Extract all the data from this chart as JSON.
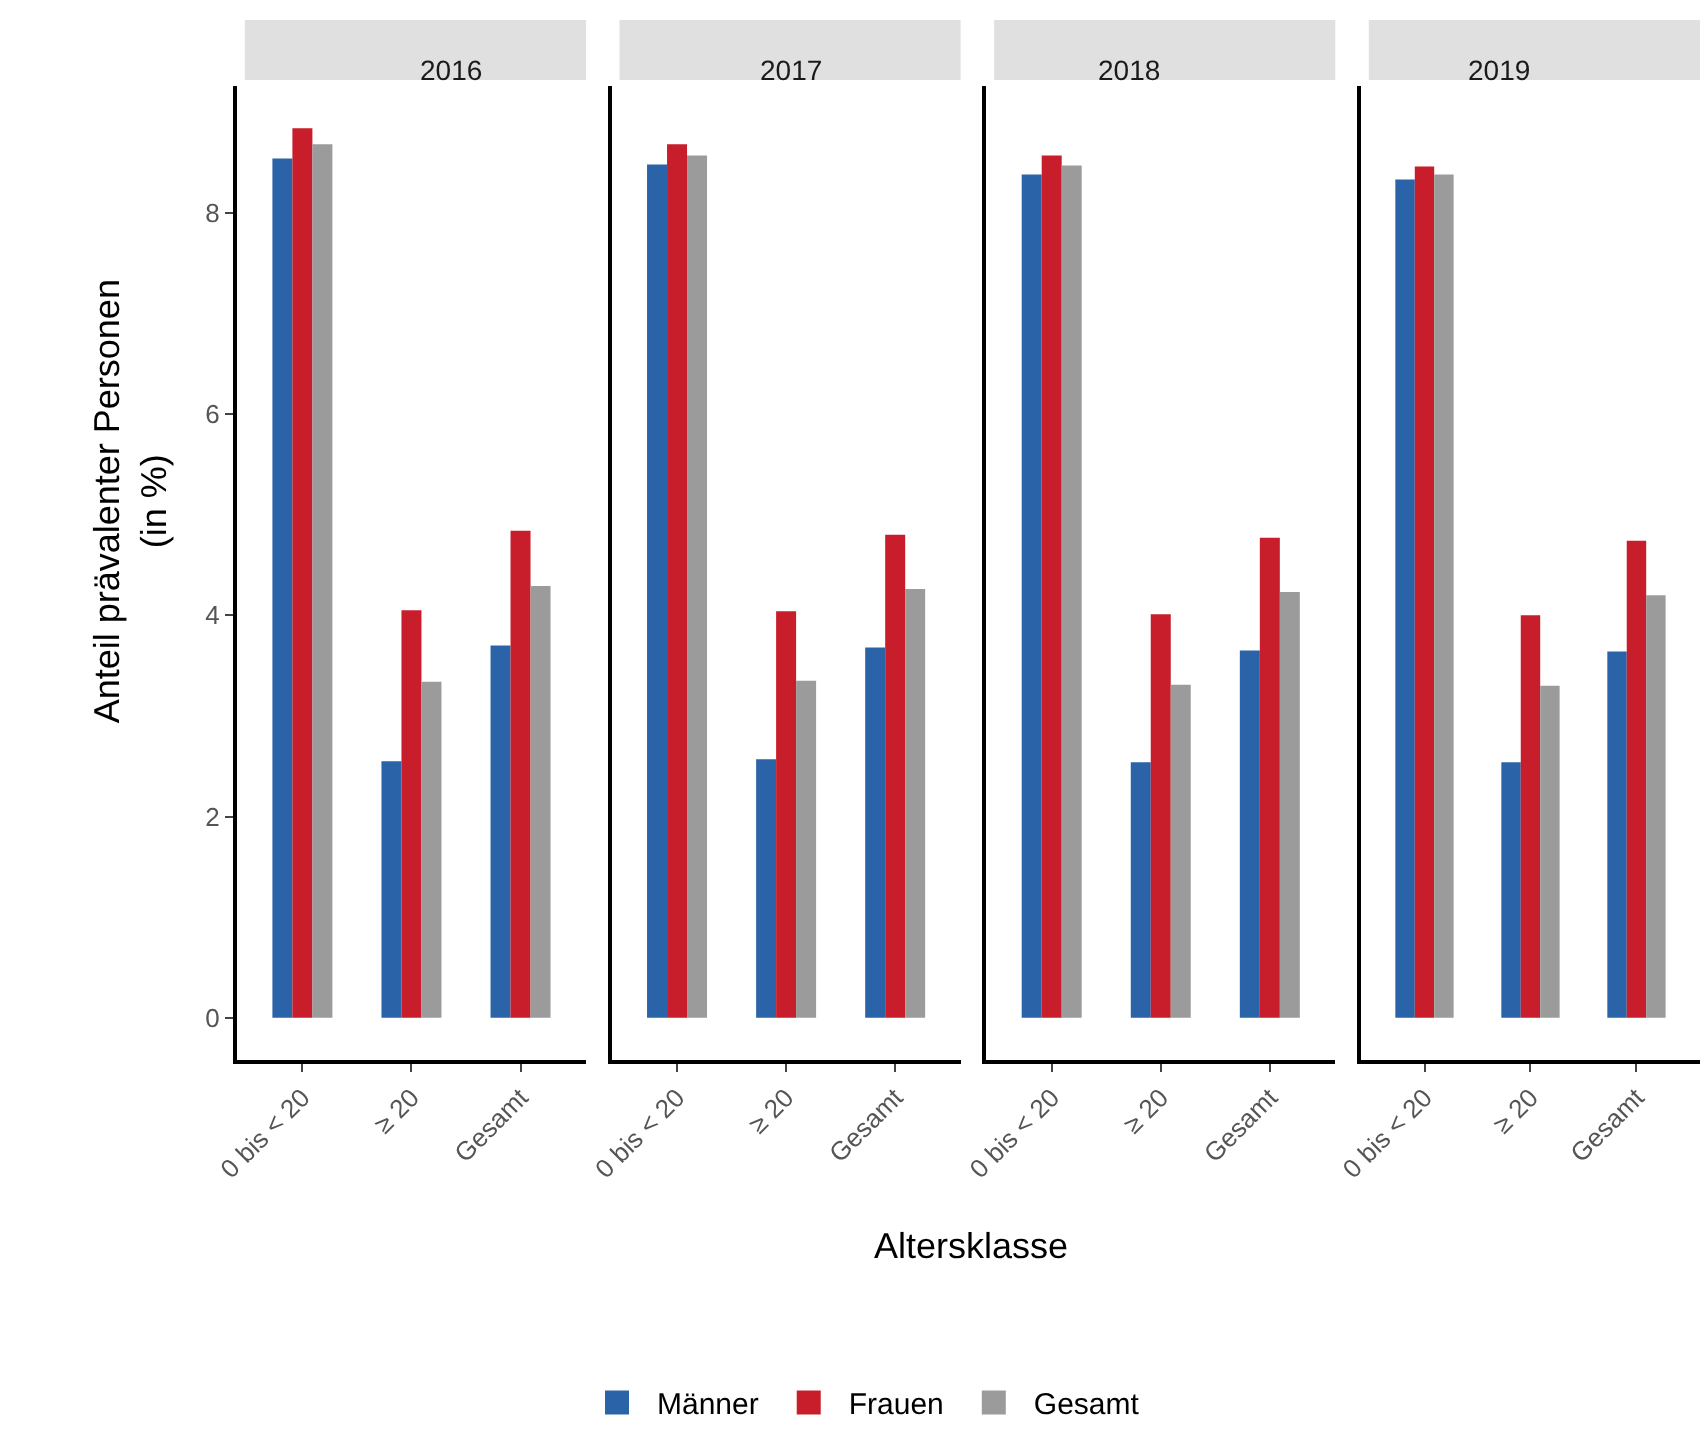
{
  "chart_data": [
    {
      "type": "bar",
      "title": "2016",
      "ylabel": "Anteil prävalenter Personen\n(in %)",
      "categories": [
        "0 bis < 20",
        "≥ 20",
        "Gesamt"
      ],
      "ylim": [
        -0.42,
        9.26
      ],
      "yticks": [
        0,
        2,
        4,
        6,
        8
      ],
      "legend": "bottom",
      "series": [
        {
          "name": "Männer",
          "color": "#2b63a8",
          "values": [
            8.54,
            2.55,
            3.7
          ]
        },
        {
          "name": "Frauen",
          "color": "#c81e2b",
          "values": [
            8.84,
            4.05,
            4.84
          ]
        },
        {
          "name": "Gesamt",
          "color": "#9b9b9b",
          "values": [
            8.68,
            3.34,
            4.29
          ]
        }
      ]
    },
    {
      "type": "bar",
      "title": "2017",
      "xlabel": "Altersklasse",
      "categories": [
        "0 bis < 20",
        "≥ 20",
        "Gesamt"
      ],
      "ylim": [
        -0.42,
        9.26
      ],
      "yticks": [
        0,
        2,
        4,
        6,
        8
      ],
      "tick_labels": "x",
      "series": [
        {
          "color": "#2b63a8",
          "values": [
            8.48,
            2.57,
            3.68
          ]
        },
        {
          "color": "#c81e2b",
          "values": [
            8.68,
            4.04,
            4.8
          ]
        },
        {
          "color": "#9b9b9b",
          "values": [
            8.57,
            3.35,
            4.26
          ]
        }
      ]
    },
    {
      "type": "bar",
      "title": "2018",
      "categories": [
        "0 bis < 20",
        "≥ 20",
        "Gesamt"
      ],
      "ylim": [
        -0.42,
        9.26
      ],
      "yticks": [
        0,
        2,
        4,
        6,
        8
      ],
      "tick_labels": "x",
      "series": [
        {
          "color": "#2b63a8",
          "values": [
            8.38,
            2.54,
            3.65
          ]
        },
        {
          "color": "#c81e2b",
          "values": [
            8.57,
            4.01,
            4.77
          ]
        },
        {
          "color": "#9b9b9b",
          "values": [
            8.47,
            3.31,
            4.23
          ]
        }
      ]
    },
    {
      "type": "bar",
      "title": "2019",
      "categories": [
        "0 bis < 20",
        "≥ 20",
        "Gesamt"
      ],
      "ylim": [
        -0.42,
        9.26
      ],
      "yticks": [
        0,
        2,
        4,
        6,
        8
      ],
      "tick_labels": "x",
      "series": [
        {
          "color": "#2b63a8",
          "values": [
            8.33,
            2.54,
            3.64
          ]
        },
        {
          "color": "#c81e2b",
          "values": [
            8.46,
            4.0,
            4.74
          ]
        },
        {
          "color": "#9b9b9b",
          "values": [
            8.38,
            3.3,
            4.2
          ]
        }
      ]
    }
  ]
}
